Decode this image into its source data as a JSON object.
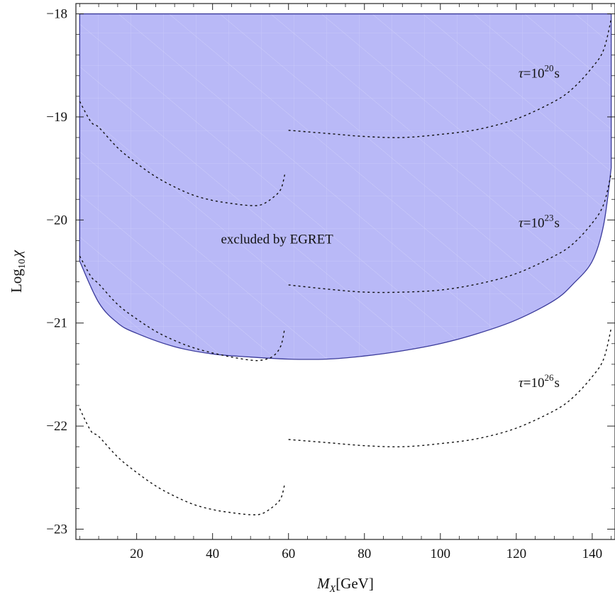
{
  "chart_data": {
    "type": "line",
    "title": "",
    "xlabel": {
      "main": "M",
      "sub": "X",
      "unit": "[GeV]"
    },
    "ylabel": {
      "main": "Log",
      "sub": "10",
      "symbol": "χ"
    },
    "xlim": [
      4,
      146
    ],
    "ylim": [
      -23.1,
      -17.9
    ],
    "x_ticks": [
      20,
      40,
      60,
      80,
      100,
      120,
      140
    ],
    "y_ticks": [
      -18,
      -19,
      -20,
      -21,
      -22,
      -23
    ],
    "grid": false,
    "excluded_region": {
      "label": "excluded by EGRET",
      "color": "#b9b9f7",
      "edge_color": "#3a3a9a",
      "x_min": 5,
      "x_max": 145,
      "top": -18,
      "lower_boundary": [
        [
          5,
          -20.4
        ],
        [
          10,
          -20.8
        ],
        [
          15,
          -21.0
        ],
        [
          20,
          -21.1
        ],
        [
          30,
          -21.23
        ],
        [
          40,
          -21.3
        ],
        [
          50,
          -21.33
        ],
        [
          60,
          -21.35
        ],
        [
          70,
          -21.35
        ],
        [
          80,
          -21.32
        ],
        [
          90,
          -21.27
        ],
        [
          100,
          -21.2
        ],
        [
          110,
          -21.1
        ],
        [
          120,
          -20.97
        ],
        [
          130,
          -20.78
        ],
        [
          135,
          -20.62
        ],
        [
          140,
          -20.4
        ],
        [
          143,
          -20.05
        ],
        [
          145,
          -19.5
        ]
      ]
    },
    "series": [
      {
        "name": "τ=10^20 s",
        "style": "dotted",
        "segments": [
          [
            [
              5,
              -18.85
            ],
            [
              8,
              -19.05
            ],
            [
              10,
              -19.1
            ],
            [
              15,
              -19.3
            ],
            [
              20,
              -19.45
            ],
            [
              25,
              -19.58
            ],
            [
              30,
              -19.68
            ],
            [
              35,
              -19.76
            ],
            [
              40,
              -19.81
            ],
            [
              45,
              -19.84
            ],
            [
              50,
              -19.86
            ],
            [
              53,
              -19.85
            ],
            [
              56,
              -19.78
            ],
            [
              58,
              -19.7
            ],
            [
              59,
              -19.56
            ]
          ],
          [
            [
              60,
              -19.13
            ],
            [
              70,
              -19.16
            ],
            [
              80,
              -19.19
            ],
            [
              90,
              -19.2
            ],
            [
              100,
              -19.17
            ],
            [
              110,
              -19.12
            ],
            [
              120,
              -19.02
            ],
            [
              130,
              -18.85
            ],
            [
              135,
              -18.72
            ],
            [
              140,
              -18.52
            ],
            [
              143,
              -18.35
            ],
            [
              145,
              -18.05
            ]
          ]
        ]
      },
      {
        "name": "τ=10^23 s",
        "style": "dotted",
        "segments": [
          [
            [
              5,
              -20.35
            ],
            [
              8,
              -20.55
            ],
            [
              10,
              -20.62
            ],
            [
              15,
              -20.82
            ],
            [
              20,
              -20.96
            ],
            [
              25,
              -21.08
            ],
            [
              30,
              -21.17
            ],
            [
              35,
              -21.24
            ],
            [
              40,
              -21.29
            ],
            [
              45,
              -21.33
            ],
            [
              50,
              -21.36
            ],
            [
              53,
              -21.36
            ],
            [
              56,
              -21.32
            ],
            [
              58,
              -21.22
            ],
            [
              59,
              -21.05
            ]
          ],
          [
            [
              60,
              -20.63
            ],
            [
              70,
              -20.67
            ],
            [
              80,
              -20.7
            ],
            [
              90,
              -20.7
            ],
            [
              100,
              -20.68
            ],
            [
              110,
              -20.62
            ],
            [
              120,
              -20.52
            ],
            [
              130,
              -20.35
            ],
            [
              135,
              -20.23
            ],
            [
              140,
              -20.03
            ],
            [
              143,
              -19.85
            ],
            [
              145,
              -19.55
            ]
          ]
        ]
      },
      {
        "name": "τ=10^26 s",
        "style": "dotted",
        "segments": [
          [
            [
              5,
              -21.83
            ],
            [
              8,
              -22.05
            ],
            [
              10,
              -22.1
            ],
            [
              15,
              -22.3
            ],
            [
              20,
              -22.45
            ],
            [
              25,
              -22.58
            ],
            [
              30,
              -22.68
            ],
            [
              35,
              -22.76
            ],
            [
              40,
              -22.81
            ],
            [
              45,
              -22.84
            ],
            [
              50,
              -22.86
            ],
            [
              53,
              -22.85
            ],
            [
              56,
              -22.78
            ],
            [
              58,
              -22.7
            ],
            [
              59,
              -22.56
            ]
          ],
          [
            [
              60,
              -22.13
            ],
            [
              70,
              -22.16
            ],
            [
              80,
              -22.19
            ],
            [
              90,
              -22.2
            ],
            [
              100,
              -22.17
            ],
            [
              110,
              -22.12
            ],
            [
              120,
              -22.02
            ],
            [
              130,
              -21.85
            ],
            [
              135,
              -21.72
            ],
            [
              140,
              -21.52
            ],
            [
              143,
              -21.35
            ],
            [
              145,
              -21.05
            ]
          ]
        ]
      }
    ],
    "annotations": [
      {
        "id": "tau20",
        "prefix": "τ=10",
        "exp": "20",
        "suffix": "s",
        "x": 126,
        "y": -18.62
      },
      {
        "id": "tau23",
        "prefix": "τ=10",
        "exp": "23",
        "suffix": "s",
        "x": 126,
        "y": -20.07
      },
      {
        "id": "tau26",
        "prefix": "τ=10",
        "exp": "26",
        "suffix": "s",
        "x": 126,
        "y": -21.62
      },
      {
        "id": "egret",
        "text": "excluded by EGRET",
        "x": 57,
        "y": -20.23
      }
    ]
  }
}
